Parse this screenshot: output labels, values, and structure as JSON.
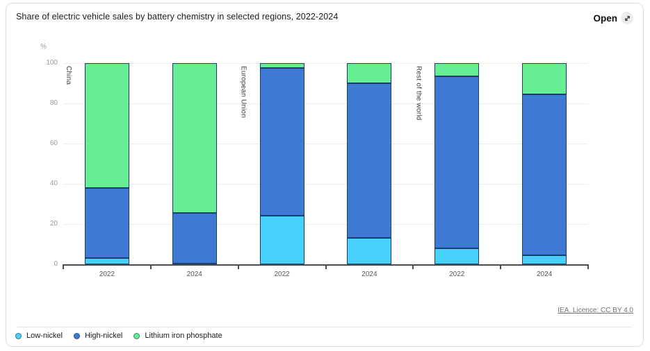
{
  "card": {
    "open_button": {
      "label": "Open",
      "icon": "expand-arrow-icon"
    }
  },
  "chart_data": {
    "type": "bar",
    "stacked": true,
    "title": "Share of electric vehicle sales by battery chemistry in selected regions, 2022-2024",
    "ylabel": "%",
    "ylim": [
      0,
      100
    ],
    "yticks": [
      0,
      20,
      40,
      60,
      80,
      100
    ],
    "grid": true,
    "legend_position": "bottom",
    "groups": [
      "China",
      "European Union",
      "Rest of the world"
    ],
    "categories": [
      "2022",
      "2024",
      "2022",
      "2024",
      "2022",
      "2024"
    ],
    "series": [
      {
        "name": "Low-nickel",
        "color": "#47d1fa",
        "values": [
          3,
          0.5,
          24,
          13,
          8,
          4.5
        ]
      },
      {
        "name": "High-nickel",
        "color": "#3e7ad3",
        "values": [
          35,
          25,
          73.5,
          77,
          85.5,
          80
        ]
      },
      {
        "name": "Lithium iron phosphate",
        "color": "#66ee95",
        "values": [
          62,
          74.5,
          2.5,
          10,
          6.5,
          15.5
        ]
      }
    ]
  },
  "footer": {
    "license_text": "IEA. Licence: CC BY 4.0"
  }
}
